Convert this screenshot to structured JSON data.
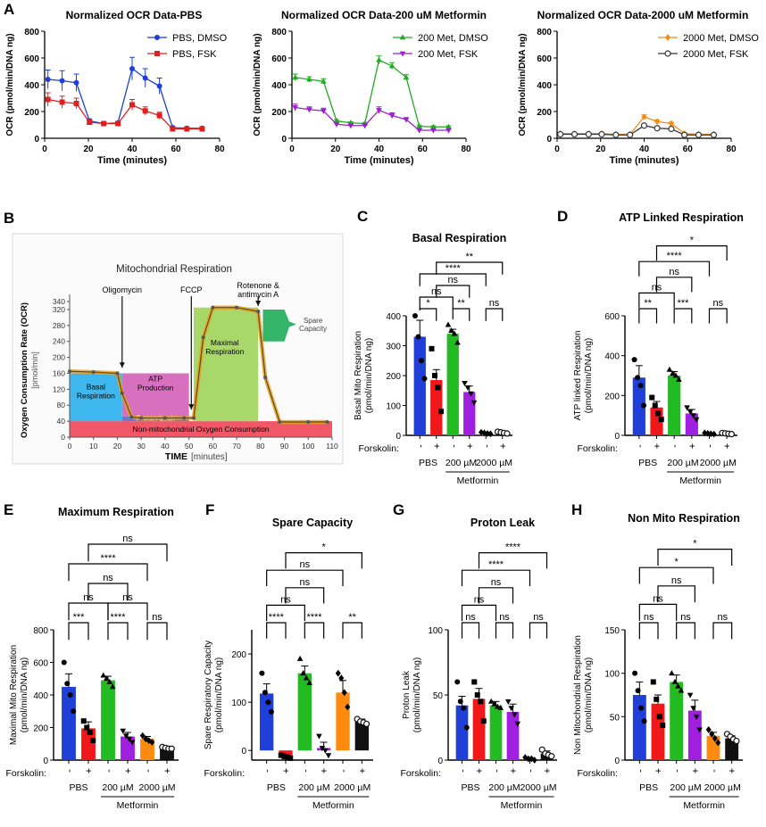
{
  "chart_data": [
    {
      "panel": "A",
      "type": "line",
      "title": "Normalized OCR Data-PBS",
      "xlabel": "Time (minutes)",
      "ylabel": "OCR (pmol/min/DNA ng)",
      "xlim": [
        0,
        80
      ],
      "ylim": [
        0,
        800
      ],
      "xticks": [
        "0",
        "20",
        "40",
        "60",
        "80"
      ],
      "yticks": [
        "0",
        "200",
        "400",
        "600",
        "800"
      ],
      "x": [
        1.5,
        8,
        14.5,
        20.5,
        27,
        33.5,
        40,
        46,
        52.5,
        58.5,
        65,
        72
      ],
      "series": [
        {
          "name": "PBS, DMSO",
          "color": "#1f3fd8",
          "marker": "circle",
          "values": [
            440,
            430,
            415,
            130,
            110,
            115,
            520,
            450,
            390,
            80,
            75,
            75
          ],
          "err": [
            70,
            75,
            65,
            15,
            10,
            10,
            85,
            70,
            60,
            10,
            10,
            8
          ]
        },
        {
          "name": "PBS, FSK",
          "color": "#e02020",
          "marker": "square",
          "values": [
            290,
            270,
            260,
            120,
            110,
            110,
            250,
            205,
            170,
            70,
            70,
            70
          ],
          "err": [
            50,
            45,
            40,
            12,
            10,
            10,
            40,
            30,
            25,
            8,
            8,
            8
          ]
        }
      ]
    },
    {
      "panel": "",
      "type": "line",
      "title": "Normalized OCR Data-200 uM Metformin",
      "xlabel": "Time (minutes)",
      "ylabel": "OCR (pmol/min/DNA ng)",
      "xlim": [
        0,
        80
      ],
      "ylim": [
        0,
        800
      ],
      "xticks": [
        "0",
        "20",
        "40",
        "60",
        "80"
      ],
      "yticks": [
        "0",
        "200",
        "400",
        "600",
        "800"
      ],
      "x": [
        1.5,
        8,
        14.5,
        20.5,
        27,
        33.5,
        40,
        46,
        52.5,
        58.5,
        65,
        72
      ],
      "series": [
        {
          "name": "200 Met, DMSO",
          "color": "#22aa22",
          "marker": "triangle",
          "values": [
            455,
            440,
            425,
            130,
            115,
            110,
            585,
            540,
            455,
            90,
            85,
            85
          ],
          "err": [
            25,
            20,
            20,
            10,
            8,
            8,
            30,
            25,
            20,
            8,
            8,
            8
          ]
        },
        {
          "name": "200 Met, FSK",
          "color": "#9a22cc",
          "marker": "triangle-down",
          "values": [
            230,
            215,
            205,
            105,
            95,
            95,
            210,
            170,
            140,
            60,
            60,
            60
          ],
          "err": [
            25,
            20,
            20,
            10,
            8,
            8,
            25,
            20,
            15,
            8,
            8,
            8
          ]
        }
      ]
    },
    {
      "panel": "",
      "type": "line",
      "title": "Normalized OCR Data-2000 uM Metformin",
      "xlabel": "Time (minutes)",
      "ylabel": "OCR (pmol/min/DNA ng)",
      "xlim": [
        0,
        80
      ],
      "ylim": [
        0,
        800
      ],
      "xticks": [
        "0",
        "20",
        "40",
        "60",
        "80"
      ],
      "yticks": [
        "0",
        "200",
        "400",
        "600",
        "800"
      ],
      "x": [
        1.5,
        8,
        14.5,
        20.5,
        27,
        33.5,
        40,
        46,
        52.5,
        58.5,
        65,
        72
      ],
      "series": [
        {
          "name": "2000 Met, DMSO",
          "color": "#f28c1a",
          "marker": "diamond",
          "values": [
            35,
            35,
            35,
            35,
            30,
            30,
            160,
            125,
            110,
            35,
            30,
            30
          ],
          "err": [
            5,
            5,
            5,
            5,
            5,
            5,
            15,
            12,
            10,
            5,
            5,
            5
          ]
        },
        {
          "name": "2000 Met, FSK",
          "color": "#333333",
          "marker": "open-circle",
          "values": [
            30,
            30,
            30,
            30,
            25,
            25,
            95,
            75,
            70,
            25,
            25,
            25
          ],
          "err": [
            5,
            5,
            5,
            5,
            5,
            5,
            10,
            8,
            8,
            5,
            5,
            5
          ]
        }
      ]
    },
    {
      "panel": "C",
      "type": "bar",
      "title": "Basal Respiration",
      "ylabel": "Basal Mito Respiration (pmol/min/DNA ng)",
      "ylim": [
        0,
        400
      ],
      "yticks": [
        "0",
        "100",
        "200",
        "300",
        "400"
      ],
      "categories": [
        "PBS -",
        "PBS +",
        "200 µM -",
        "200 µM +",
        "2000 µM -",
        "2000 µM +"
      ],
      "values": [
        330,
        185,
        340,
        145,
        8,
        10
      ],
      "err": [
        55,
        35,
        15,
        20,
        3,
        3
      ],
      "points": [
        [
          400,
          330,
          250,
          190
        ],
        [
          290,
          200,
          160,
          80
        ],
        [
          370,
          350,
          340,
          310
        ],
        [
          175,
          160,
          140,
          110
        ],
        [
          10,
          8,
          6,
          5
        ],
        [
          12,
          10,
          8,
          6
        ]
      ],
      "brackets": [
        {
          "a": 0,
          "b": 1,
          "label": "*",
          "level": 0
        },
        {
          "a": 2,
          "b": 3,
          "label": "**",
          "level": 0
        },
        {
          "a": 4,
          "b": 5,
          "label": "ns",
          "level": 0
        },
        {
          "a": 0,
          "b": 2,
          "label": "ns",
          "level": 1
        },
        {
          "a": 1,
          "b": 3,
          "label": "ns",
          "level": 2
        },
        {
          "a": 0,
          "b": 4,
          "label": "****",
          "level": 3
        },
        {
          "a": 1,
          "b": 5,
          "label": "**",
          "level": 4
        }
      ]
    },
    {
      "panel": "D",
      "type": "bar",
      "title": "ATP Linked Respiration",
      "ylabel": "ATP linked Respiration (pmol/min/DNA ng)",
      "ylim": [
        0,
        600
      ],
      "yticks": [
        "0",
        "200",
        "400",
        "600"
      ],
      "categories": [
        "PBS -",
        "PBS +",
        "200 µM -",
        "200 µM +",
        "2000 µM -",
        "2000 µM +"
      ],
      "values": [
        290,
        140,
        300,
        110,
        10,
        10
      ],
      "err": [
        60,
        30,
        20,
        20,
        3,
        3
      ],
      "points": [
        [
          380,
          290,
          250,
          150
        ],
        [
          190,
          150,
          110,
          80
        ],
        [
          330,
          310,
          300,
          280
        ],
        [
          140,
          120,
          100,
          80
        ],
        [
          12,
          10,
          8,
          6
        ],
        [
          12,
          10,
          8,
          6
        ]
      ],
      "brackets": [
        {
          "a": 0,
          "b": 1,
          "label": "**",
          "level": 0
        },
        {
          "a": 2,
          "b": 3,
          "label": "***",
          "level": 0
        },
        {
          "a": 4,
          "b": 5,
          "label": "ns",
          "level": 0
        },
        {
          "a": 0,
          "b": 2,
          "label": "ns",
          "level": 1
        },
        {
          "a": 1,
          "b": 3,
          "label": "ns",
          "level": 2
        },
        {
          "a": 0,
          "b": 4,
          "label": "****",
          "level": 3
        },
        {
          "a": 1,
          "b": 5,
          "label": "*",
          "level": 4
        }
      ]
    },
    {
      "panel": "E",
      "type": "bar",
      "title": "Maximum Respiration",
      "ylabel": "Maximal Mito Respiration (pmol/min/DNA ng)",
      "ylim": [
        0,
        800
      ],
      "yticks": [
        "0",
        "200",
        "400",
        "600",
        "800"
      ],
      "categories": [
        "PBS -",
        "PBS +",
        "200 µM -",
        "200 µM +",
        "2000 µM -",
        "2000 µM +"
      ],
      "values": [
        450,
        195,
        490,
        145,
        130,
        75
      ],
      "err": [
        80,
        40,
        25,
        25,
        15,
        10
      ],
      "points": [
        [
          600,
          470,
          400,
          300
        ],
        [
          240,
          200,
          170,
          120
        ],
        [
          520,
          500,
          480,
          450
        ],
        [
          180,
          150,
          130,
          110
        ],
        [
          150,
          130,
          120,
          110
        ],
        [
          80,
          75,
          70,
          70
        ]
      ],
      "brackets": [
        {
          "a": 0,
          "b": 1,
          "label": "***",
          "level": 0
        },
        {
          "a": 2,
          "b": 3,
          "label": "****",
          "level": 0
        },
        {
          "a": 4,
          "b": 5,
          "label": "ns",
          "level": 0
        },
        {
          "a": 0,
          "b": 2,
          "label": "ns",
          "level": 1
        },
        {
          "a": 2,
          "b": 4,
          "label": "ns",
          "level": 1
        },
        {
          "a": 1,
          "b": 3,
          "label": "ns",
          "level": 2
        },
        {
          "a": 0,
          "b": 4,
          "label": "****",
          "level": 3
        },
        {
          "a": 1,
          "b": 5,
          "label": "ns",
          "level": 4
        }
      ]
    },
    {
      "panel": "F",
      "type": "bar",
      "title": "Spare Capacity",
      "ylabel": "Spare Respiratory Capacity (pmol/min/DNA ng)",
      "ylim": [
        -20,
        250
      ],
      "yticks": [
        "0",
        "100",
        "200"
      ],
      "categories": [
        "PBS -",
        "PBS +",
        "200 µM -",
        "200 µM +",
        "2000 µM -",
        "2000 µM +"
      ],
      "values": [
        118,
        -12,
        160,
        5,
        120,
        60
      ],
      "err": [
        20,
        5,
        15,
        12,
        25,
        5
      ],
      "points": [
        [
          160,
          120,
          100,
          80
        ],
        [
          -10,
          -12,
          -14,
          -16
        ],
        [
          190,
          160,
          150,
          140
        ],
        [
          30,
          5,
          0,
          -10
        ],
        [
          160,
          150,
          120,
          90
        ],
        [
          65,
          60,
          58,
          55
        ]
      ],
      "brackets": [
        {
          "a": 0,
          "b": 1,
          "label": "****",
          "level": 0
        },
        {
          "a": 2,
          "b": 3,
          "label": "****",
          "level": 0
        },
        {
          "a": 4,
          "b": 5,
          "label": "**",
          "level": 0
        },
        {
          "a": 0,
          "b": 2,
          "label": "ns",
          "level": 1
        },
        {
          "a": 1,
          "b": 3,
          "label": "ns",
          "level": 2
        },
        {
          "a": 0,
          "b": 4,
          "label": "ns",
          "level": 3
        },
        {
          "a": 1,
          "b": 5,
          "label": "*",
          "level": 4
        }
      ]
    },
    {
      "panel": "G",
      "type": "bar",
      "title": "Proton Leak",
      "ylabel": "Proton Leak (pmol/min/DNA ng)",
      "ylim": [
        0,
        100
      ],
      "yticks": [
        "0",
        "50",
        "100"
      ],
      "categories": [
        "PBS -",
        "PBS +",
        "200 µM -",
        "200 µM +",
        "2000 µM -",
        "2000 µM +"
      ],
      "values": [
        42,
        47,
        42,
        37,
        1,
        5
      ],
      "err": [
        7,
        8,
        3,
        6,
        1,
        2
      ],
      "points": [
        [
          60,
          45,
          40,
          25
        ],
        [
          60,
          50,
          45,
          30
        ],
        [
          45,
          43,
          41,
          40
        ],
        [
          45,
          40,
          35,
          28
        ],
        [
          2,
          1,
          1,
          0
        ],
        [
          8,
          5,
          4,
          3
        ]
      ],
      "brackets": [
        {
          "a": 0,
          "b": 1,
          "label": "ns",
          "level": 0
        },
        {
          "a": 2,
          "b": 3,
          "label": "ns",
          "level": 0
        },
        {
          "a": 4,
          "b": 5,
          "label": "ns",
          "level": 0
        },
        {
          "a": 0,
          "b": 2,
          "label": "ns",
          "level": 1
        },
        {
          "a": 1,
          "b": 3,
          "label": "ns",
          "level": 2
        },
        {
          "a": 0,
          "b": 4,
          "label": "****",
          "level": 3
        },
        {
          "a": 1,
          "b": 5,
          "label": "****",
          "level": 4
        }
      ]
    },
    {
      "panel": "H",
      "type": "bar",
      "title": "Non Mito Respiration",
      "ylabel": "Non Mitochondrial Respiration (pmol/min/DNA ng)",
      "ylim": [
        0,
        150
      ],
      "yticks": [
        "0",
        "50",
        "100",
        "150"
      ],
      "categories": [
        "PBS -",
        "PBS +",
        "200 µM -",
        "200 µM +",
        "2000 µM -",
        "2000 µM +"
      ],
      "values": [
        75,
        65,
        90,
        57,
        28,
        25
      ],
      "err": [
        15,
        10,
        8,
        12,
        4,
        3
      ],
      "points": [
        [
          100,
          80,
          60,
          45
        ],
        [
          90,
          70,
          50,
          40
        ],
        [
          100,
          90,
          85,
          80
        ],
        [
          75,
          60,
          50,
          35
        ],
        [
          35,
          30,
          25,
          20
        ],
        [
          30,
          27,
          24,
          22
        ]
      ],
      "brackets": [
        {
          "a": 0,
          "b": 1,
          "label": "ns",
          "level": 0
        },
        {
          "a": 2,
          "b": 3,
          "label": "ns",
          "level": 0
        },
        {
          "a": 4,
          "b": 5,
          "label": "ns",
          "level": 0
        },
        {
          "a": 0,
          "b": 2,
          "label": "ns",
          "level": 1
        },
        {
          "a": 1,
          "b": 3,
          "label": "ns",
          "level": 2
        },
        {
          "a": 0,
          "b": 4,
          "label": "*",
          "level": 3
        },
        {
          "a": 1,
          "b": 5,
          "label": "*",
          "level": 4
        }
      ]
    }
  ],
  "groups": {
    "pbs": "PBS",
    "met200": "200 µM",
    "met2000": "2000 µM",
    "metformin": "Metformin",
    "forskolin": "Forskolin:",
    "minus": "-",
    "plus": "+"
  },
  "bar_colors": [
    "#1f3fd8",
    "#f01818",
    "#22bb22",
    "#a020e0",
    "#ff8a10",
    "#111111"
  ],
  "point_markers": [
    "circle",
    "square",
    "triangle",
    "triangle-down",
    "diamond",
    "open-circle"
  ],
  "diagram": {
    "panel": "B",
    "title": "Mitochondrial Respiration",
    "ylabel": "Oxygen Consumption Rate (OCR)",
    "yunit": "[pmol/min]",
    "xlabel": "TIME",
    "xunit": "[minutes]",
    "xticks": [
      "0",
      "10",
      "20",
      "30",
      "40",
      "50",
      "60",
      "70",
      "80",
      "90",
      "100",
      "110"
    ],
    "yticks": [
      "0",
      "40",
      "80",
      "120",
      "160",
      "200",
      "240",
      "280",
      "320",
      "340"
    ],
    "injections": [
      "Oligomycin",
      "FCCP",
      "Rotenone &",
      "antimycin A"
    ],
    "regions": {
      "basal1": "Basal",
      "basal2": "Respiration",
      "atp1": "ATP",
      "atp2": "Production",
      "proton": "Proton Leak",
      "max1": "Maximal",
      "max2": "Respiration",
      "spare1": "Spare",
      "spare2": "Capacity",
      "nonmito": "Non-mitochondrial Oxygen Consumption"
    },
    "trace_x": [
      0,
      10,
      20,
      22,
      26,
      30,
      40,
      48,
      52,
      56,
      60,
      70,
      79,
      82,
      88,
      100,
      108
    ],
    "trace_y": [
      165,
      163,
      160,
      110,
      50,
      48,
      48,
      48,
      48,
      250,
      325,
      325,
      315,
      150,
      38,
      38,
      38
    ],
    "colors": {
      "basal": "#3db7ee",
      "atp": "#d870c0",
      "proton": "#6f78c8",
      "max": "#a8d86a",
      "spare": "#34b56a",
      "nonmito": "#f05868",
      "trace": "#e8a020"
    }
  }
}
